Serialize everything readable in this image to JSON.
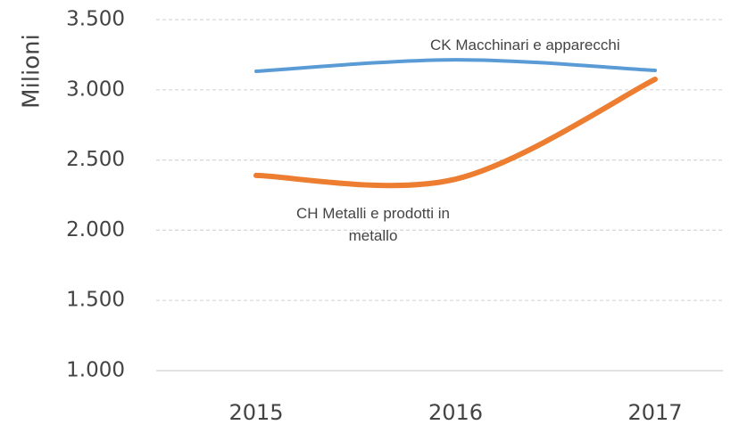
{
  "chart_data": {
    "type": "line",
    "y_label": "Milioni",
    "categories": [
      "2015",
      "2016",
      "2017"
    ],
    "series": [
      {
        "name": "CK Macchinari e apparecchi",
        "color": "#5b9bd5",
        "values": [
          3132,
          3214,
          3138
        ]
      },
      {
        "name": "CH Metalli e prodotti in metallo",
        "color": "#ed7d31",
        "values": [
          2390,
          2364,
          3075
        ]
      }
    ],
    "ylim": [
      1000,
      3500
    ],
    "yticks": [
      {
        "value": 1000,
        "label": "1.000"
      },
      {
        "value": 1500,
        "label": "1.500"
      },
      {
        "value": 2000,
        "label": "2.000"
      },
      {
        "value": 2500,
        "label": "2.500"
      },
      {
        "value": 3000,
        "label": "3.000"
      },
      {
        "value": 3500,
        "label": "3.500"
      }
    ],
    "grid": true,
    "smooth": true
  }
}
